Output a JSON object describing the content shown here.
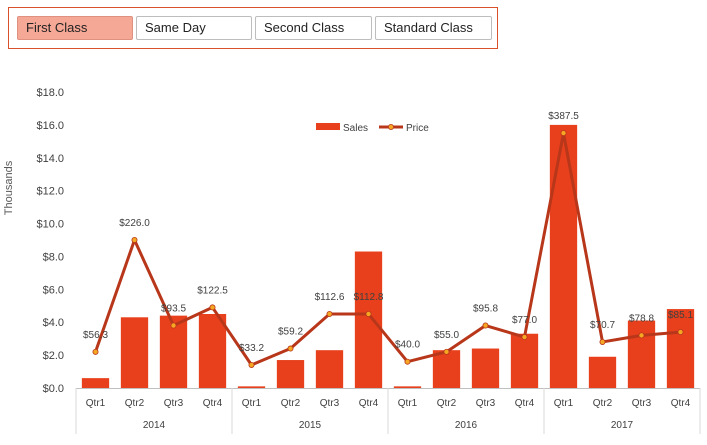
{
  "slicer": {
    "items": [
      {
        "label": "First Class",
        "selected": true
      },
      {
        "label": "Same Day",
        "selected": false
      },
      {
        "label": "Second Class",
        "selected": false
      },
      {
        "label": "Standard Class",
        "selected": false
      }
    ]
  },
  "colors": {
    "bar": "#e8401c",
    "line": "#b8371a",
    "marker": "#f5a623",
    "slicer_border": "#d9502a",
    "slicer_selected": "#f6a896"
  },
  "chart_data": {
    "type": "bar",
    "title": "",
    "ylabel": "Thousands",
    "xlabel": "",
    "ylim": [
      0,
      18
    ],
    "yticks": [
      "$0.0",
      "$2.0",
      "$4.0",
      "$6.0",
      "$8.0",
      "$10.0",
      "$12.0",
      "$14.0",
      "$16.0",
      "$18.0"
    ],
    "categories": [
      "Qtr1",
      "Qtr2",
      "Qtr3",
      "Qtr4",
      "Qtr1",
      "Qtr2",
      "Qtr3",
      "Qtr4",
      "Qtr1",
      "Qtr2",
      "Qtr3",
      "Qtr4",
      "Qtr1",
      "Qtr2",
      "Qtr3",
      "Qtr4"
    ],
    "groups": [
      {
        "label": "2014",
        "count": 4
      },
      {
        "label": "2015",
        "count": 4
      },
      {
        "label": "2016",
        "count": 4
      },
      {
        "label": "2017",
        "count": 4
      }
    ],
    "legend_position": "top-center",
    "grid": false,
    "series": [
      {
        "name": "Sales",
        "type": "bar",
        "values": [
          0.6,
          4.3,
          4.4,
          4.5,
          0.1,
          1.7,
          2.3,
          8.3,
          0.1,
          2.3,
          2.4,
          3.3,
          16.0,
          1.9,
          4.1,
          4.8
        ]
      },
      {
        "name": "Price",
        "type": "line",
        "values": [
          2.2,
          9.0,
          3.8,
          4.9,
          1.4,
          2.4,
          4.5,
          4.5,
          1.6,
          2.2,
          3.8,
          3.1,
          15.5,
          2.8,
          3.2,
          3.4
        ],
        "labels": [
          "$56.3",
          "$226.0",
          "$93.5",
          "$122.5",
          "$33.2",
          "$59.2",
          "$112.6",
          "$112.8",
          "$40.0",
          "$55.0",
          "$95.8",
          "$77.0",
          "$387.5",
          "$70.7",
          "$78.8",
          "$85.1"
        ]
      }
    ]
  }
}
